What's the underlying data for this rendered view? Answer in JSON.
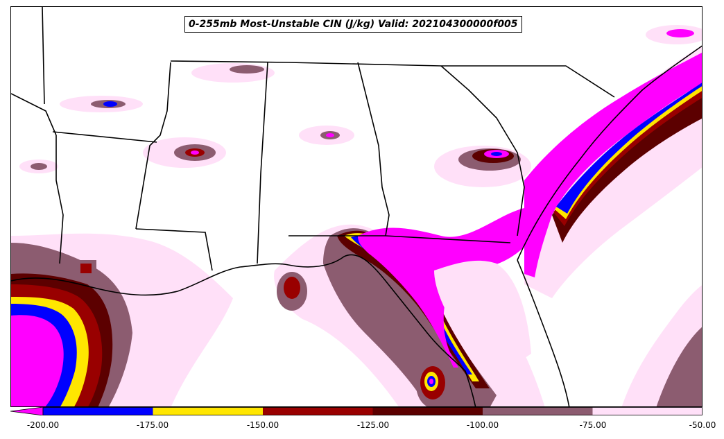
{
  "title": "0-255mb Most-Unstable CIN (J/kg) Valid: 202104300000f005",
  "colorbar": {
    "ticks": [
      "-200.00",
      "-175.00",
      "-150.00",
      "-125.00",
      "-100.00",
      "-75.00",
      "-50.00"
    ],
    "bins": [
      {
        "from": -200,
        "to": -175,
        "color": "#0000ff"
      },
      {
        "from": -175,
        "to": -150,
        "color": "#ffe600"
      },
      {
        "from": -150,
        "to": -125,
        "color": "#990000"
      },
      {
        "from": -125,
        "to": -100,
        "color": "#5c0000"
      },
      {
        "from": -100,
        "to": -75,
        "color": "#8c5c70"
      },
      {
        "from": -75,
        "to": -50,
        "color": "#ffe0f8"
      }
    ],
    "under_color": "#ff00ff"
  },
  "colors": {
    "magenta": "#ff00ff",
    "blue": "#0000ff",
    "yellow": "#ffe600",
    "red": "#990000",
    "darkred": "#5c0000",
    "mauve": "#8c5c70",
    "lightpink": "#ffe0f8",
    "border": "#000000"
  }
}
